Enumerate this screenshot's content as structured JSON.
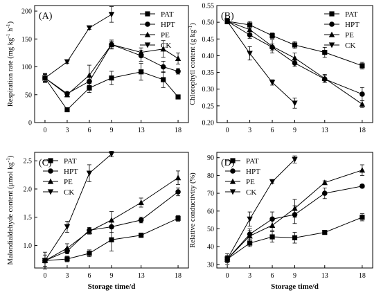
{
  "chart_data": [
    {
      "type": "line",
      "panel_label": "(A)",
      "ylabel": "Respiration rate (mg kg⁻¹ h⁻¹)",
      "ylabel_main": "Respiration rate (mg kg",
      "ylabel_sup1": "-1",
      "ylabel_mid": " h",
      "ylabel_sup2": "-1",
      "ylabel_end": ")",
      "xlabel": "",
      "xlim": [
        -1.4,
        19.4
      ],
      "ylim": [
        0,
        210
      ],
      "xticks": [
        "0",
        "3",
        "6",
        "9",
        "13",
        "18"
      ],
      "xtick_values": [
        0,
        3,
        6,
        9,
        13,
        18
      ],
      "yticks": [
        "0",
        "50",
        "100",
        "150",
        "200"
      ],
      "ytick_values": [
        0,
        50,
        100,
        150,
        200
      ],
      "legend_position": "top-right",
      "series": [
        {
          "name": "PAT",
          "marker": "square",
          "x": [
            0,
            3,
            6,
            9,
            13,
            16,
            18
          ],
          "y": [
            80,
            23,
            62,
            80,
            91,
            77,
            46
          ],
          "err": [
            8,
            2,
            8,
            12,
            15,
            14,
            2
          ]
        },
        {
          "name": "HPT",
          "marker": "circle",
          "x": [
            0,
            3,
            6,
            9,
            13,
            16,
            18
          ],
          "y": [
            80,
            52,
            74,
            140,
            120,
            100,
            92
          ],
          "err": [
            6,
            3,
            9,
            6,
            10,
            10,
            5
          ]
        },
        {
          "name": "PE",
          "marker": "triangle-up",
          "x": [
            0,
            3,
            6,
            9,
            13,
            16,
            18
          ],
          "y": [
            80,
            50,
            85,
            140,
            126,
            132,
            115
          ],
          "err": [
            7,
            4,
            18,
            8,
            8,
            15,
            10
          ]
        },
        {
          "name": "CK",
          "marker": "triangle-down",
          "x": [
            0,
            3,
            6,
            9
          ],
          "y": [
            80,
            109,
            170,
            194
          ],
          "err": [
            8,
            3,
            3,
            14
          ]
        }
      ]
    },
    {
      "type": "line",
      "panel_label": "(B)",
      "ylabel": "Chlorophyll content (g kg⁻¹)",
      "ylabel_main": "Chlorophyll content (g kg",
      "ylabel_sup1": "-1",
      "ylabel_mid": "",
      "ylabel_sup2": "",
      "ylabel_end": ")",
      "xlabel": "",
      "xlim": [
        -1.4,
        19.4
      ],
      "ylim": [
        0.2,
        0.55
      ],
      "xticks": [
        "0",
        "3",
        "6",
        "9",
        "13",
        "18"
      ],
      "xtick_values": [
        0,
        3,
        6,
        9,
        13,
        18
      ],
      "yticks": [
        "0.20",
        "0.25",
        "0.30",
        "0.35",
        "0.40",
        "0.45",
        "0.50",
        "0.55"
      ],
      "ytick_values": [
        0.2,
        0.25,
        0.3,
        0.35,
        0.4,
        0.45,
        0.5,
        0.55
      ],
      "legend_position": "top-right",
      "series": [
        {
          "name": "PAT",
          "marker": "square",
          "x": [
            0,
            3,
            6,
            9,
            13,
            18
          ],
          "y": [
            0.503,
            0.492,
            0.46,
            0.432,
            0.41,
            0.37
          ],
          "err": [
            0.008,
            0.01,
            0.008,
            0.01,
            0.015,
            0.01
          ]
        },
        {
          "name": "HPT",
          "marker": "circle",
          "x": [
            0,
            3,
            6,
            9,
            13,
            18
          ],
          "y": [
            0.503,
            0.462,
            0.425,
            0.378,
            0.33,
            0.285
          ],
          "err": [
            0.008,
            0.01,
            0.01,
            0.01,
            0.01,
            0.02
          ]
        },
        {
          "name": "PE",
          "marker": "triangle-up",
          "x": [
            0,
            3,
            6,
            9,
            13,
            18
          ],
          "y": [
            0.503,
            0.478,
            0.428,
            0.393,
            0.332,
            0.255
          ],
          "err": [
            0.008,
            0.015,
            0.02,
            0.015,
            0.012,
            0.01
          ]
        },
        {
          "name": "CK",
          "marker": "triangle-down",
          "x": [
            0,
            3,
            6,
            9
          ],
          "y": [
            0.503,
            0.407,
            0.32,
            0.258
          ],
          "err": [
            0.008,
            0.02,
            0.008,
            0.015
          ]
        }
      ]
    },
    {
      "type": "line",
      "panel_label": "(C)",
      "ylabel": "Malondialdehyde content (μmol kg⁻¹)",
      "ylabel_main": "Malondialdehyde content (μmol kg",
      "ylabel_sup1": "-1",
      "ylabel_mid": "",
      "ylabel_sup2": "",
      "ylabel_end": ")",
      "xlabel": "Storage time/d",
      "xlim": [
        -1.4,
        19.4
      ],
      "ylim": [
        0.6,
        2.65
      ],
      "xticks": [
        "0",
        "3",
        "6",
        "9",
        "13",
        "18"
      ],
      "xtick_values": [
        0,
        3,
        6,
        9,
        13,
        18
      ],
      "yticks": [
        "1.0",
        "1.5",
        "2.0",
        "2.5"
      ],
      "ytick_values": [
        1.0,
        1.5,
        2.0,
        2.5
      ],
      "legend_position": "top-left",
      "series": [
        {
          "name": "PAT",
          "marker": "square",
          "x": [
            0,
            3,
            6,
            9,
            13,
            18
          ],
          "y": [
            0.73,
            0.76,
            0.86,
            1.1,
            1.18,
            1.48
          ],
          "err": [
            0.04,
            0.05,
            0.06,
            0.2,
            0.04,
            0.05
          ]
        },
        {
          "name": "HPT",
          "marker": "circle",
          "x": [
            0,
            3,
            6,
            9,
            13,
            18
          ],
          "y": [
            0.73,
            0.9,
            1.27,
            1.33,
            1.45,
            1.95
          ],
          "err": [
            0.04,
            0.05,
            0.05,
            0.1,
            0.05,
            0.07
          ]
        },
        {
          "name": "PE",
          "marker": "triangle-up",
          "x": [
            0,
            3,
            6,
            9,
            13,
            18
          ],
          "y": [
            0.73,
            0.95,
            1.25,
            1.45,
            1.76,
            2.2
          ],
          "err": [
            0.1,
            0.08,
            0.05,
            0.15,
            0.08,
            0.12
          ]
        },
        {
          "name": "CK",
          "marker": "triangle-down",
          "x": [
            0,
            3,
            6,
            9
          ],
          "y": [
            0.73,
            1.33,
            2.28,
            2.62
          ],
          "err": [
            0.15,
            0.1,
            0.15,
            0.05
          ]
        }
      ]
    },
    {
      "type": "line",
      "panel_label": "(D)",
      "ylabel": "Relative conductivity (%)",
      "ylabel_main": "Relative conductivity (%)",
      "ylabel_sup1": "",
      "ylabel_mid": "",
      "ylabel_sup2": "",
      "ylabel_end": "",
      "xlabel": "Storage time/d",
      "xlim": [
        -1.4,
        19.4
      ],
      "ylim": [
        28,
        93
      ],
      "xticks": [
        "0",
        "3",
        "6",
        "9",
        "13",
        "18"
      ],
      "xtick_values": [
        0,
        3,
        6,
        9,
        13,
        18
      ],
      "yticks": [
        "30",
        "40",
        "50",
        "60",
        "70",
        "80",
        "90"
      ],
      "ytick_values": [
        30,
        40,
        50,
        60,
        70,
        80,
        90
      ],
      "legend_position": "top-left",
      "series": [
        {
          "name": "PAT",
          "marker": "square",
          "x": [
            0,
            3,
            6,
            9,
            13,
            18
          ],
          "y": [
            33,
            42,
            45.5,
            45,
            48,
            56.5
          ],
          "err": [
            1.5,
            2,
            3,
            3,
            1,
            2
          ]
        },
        {
          "name": "HPT",
          "marker": "circle",
          "x": [
            0,
            3,
            6,
            9,
            13,
            18
          ],
          "y": [
            33,
            47,
            55.5,
            58,
            70,
            74
          ],
          "err": [
            2,
            3,
            4,
            5,
            3,
            1
          ]
        },
        {
          "name": "PE",
          "marker": "triangle-up",
          "x": [
            0,
            3,
            6,
            9,
            13,
            18
          ],
          "y": [
            33,
            46,
            52,
            61.5,
            76,
            83
          ],
          "err": [
            2,
            3,
            3,
            5,
            1,
            3
          ]
        },
        {
          "name": "CK",
          "marker": "triangle-down",
          "x": [
            0,
            3,
            6,
            9
          ],
          "y": [
            33,
            55.5,
            76.5,
            89
          ],
          "err": [
            3,
            4,
            1,
            2
          ]
        }
      ]
    }
  ]
}
